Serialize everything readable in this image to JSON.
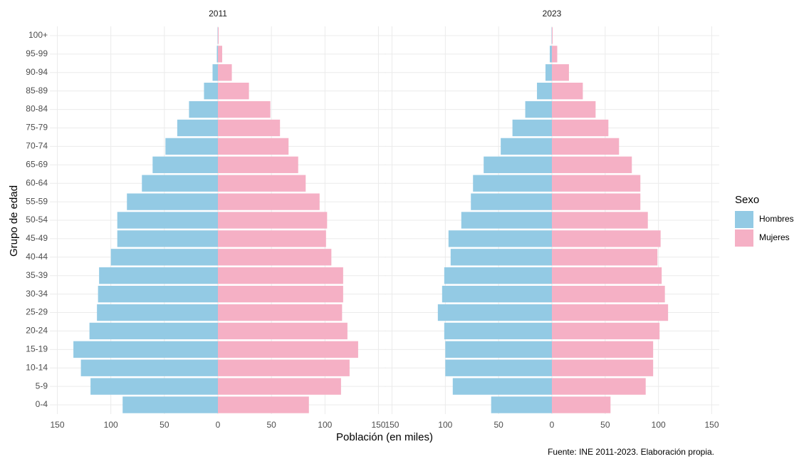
{
  "chart_data": [
    {
      "type": "bar",
      "title": "2011",
      "categories": [
        "0-4",
        "5-9",
        "10-14",
        "15-19",
        "20-24",
        "25-29",
        "30-34",
        "35-39",
        "40-44",
        "45-49",
        "50-54",
        "55-59",
        "60-64",
        "65-69",
        "70-74",
        "75-79",
        "80-84",
        "85-89",
        "90-94",
        "95-99",
        "100+"
      ],
      "series": [
        {
          "name": "Hombres",
          "color": "#93cae4",
          "values": [
            -89,
            -119,
            -128,
            -135,
            -120,
            -113,
            -112,
            -111,
            -100,
            -94,
            -94,
            -85,
            -71,
            -61,
            -49,
            -38,
            -27,
            -13,
            -5,
            -1,
            -0.3
          ]
        },
        {
          "name": "Mujeres",
          "color": "#f5b0c5",
          "values": [
            85,
            115,
            123,
            131,
            121,
            116,
            117,
            117,
            106,
            101,
            102,
            95,
            82,
            75,
            66,
            58,
            49,
            29,
            13,
            4,
            0.7
          ]
        }
      ],
      "xlim": [
        -157,
        157
      ],
      "xticks": [
        {
          "value": -150,
          "label": "150"
        },
        {
          "value": -100,
          "label": "100"
        },
        {
          "value": -50,
          "label": "50"
        },
        0,
        50,
        100,
        150
      ],
      "grid": true
    },
    {
      "type": "bar",
      "title": "2023",
      "categories": [
        "0-4",
        "5-9",
        "10-14",
        "15-19",
        "20-24",
        "25-29",
        "30-34",
        "35-39",
        "40-44",
        "45-49",
        "50-54",
        "55-59",
        "60-64",
        "65-69",
        "70-74",
        "75-79",
        "80-84",
        "85-89",
        "90-94",
        "95-99",
        "100+"
      ],
      "series": [
        {
          "name": "Hombres",
          "color": "#93cae4",
          "values": [
            -57,
            -93,
            -100,
            -100,
            -101,
            -107,
            -103,
            -101,
            -95,
            -97,
            -85,
            -76,
            -74,
            -64,
            -48,
            -37,
            -25,
            -14,
            -6,
            -2,
            -0.3
          ]
        },
        {
          "name": "Mujeres",
          "color": "#f5b0c5",
          "values": [
            55,
            88,
            95,
            95,
            101,
            109,
            106,
            103,
            99,
            102,
            90,
            83,
            83,
            75,
            63,
            53,
            41,
            29,
            16,
            5,
            0.7
          ]
        }
      ],
      "xlim": [
        -157,
        157
      ],
      "xticks": [
        {
          "value": -150,
          "label": "150"
        },
        {
          "value": -100,
          "label": "100"
        },
        {
          "value": -50,
          "label": "50"
        },
        0,
        50,
        100,
        150
      ],
      "grid": true
    }
  ],
  "x_label": "Población (en miles)",
  "y_label": "Grupo de edad",
  "legend_title": "Sexo",
  "caption": "Fuente: INE 2011-2023. Elaboración propia."
}
